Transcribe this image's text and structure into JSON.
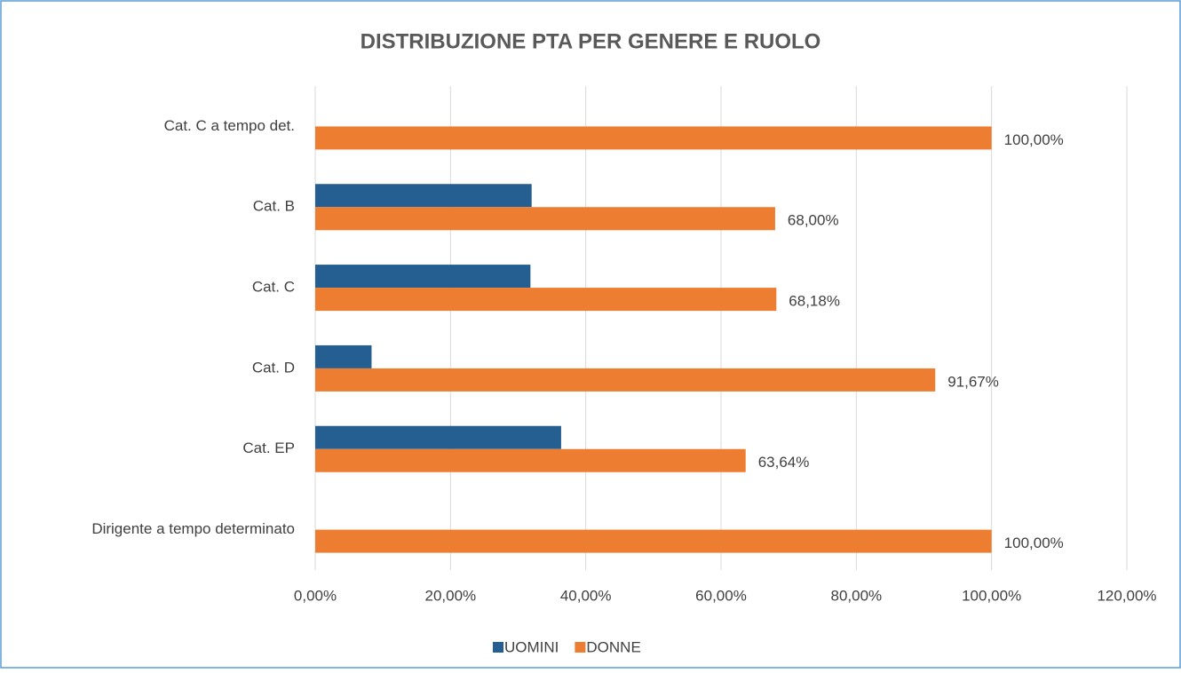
{
  "chart_data": {
    "type": "hbar",
    "title": "DISTRIBUZIONE PTA PER GENERE E RUOLO",
    "categories": [
      "Cat. C a tempo det.",
      "Cat. B",
      "Cat. C",
      "Cat. D",
      "Cat. EP",
      "Dirigente a tempo determinato"
    ],
    "series": [
      {
        "name": "UOMINI",
        "color": "#255e91",
        "values": [
          0,
          32,
          31.82,
          8.33,
          36.36,
          0
        ]
      },
      {
        "name": "DONNE",
        "color": "#ed7d31",
        "values": [
          100,
          68,
          68.18,
          91.67,
          63.64,
          100
        ],
        "value_labels": [
          "100,00%",
          "68,00%",
          "68,18%",
          "91,67%",
          "63,64%",
          "100,00%"
        ]
      }
    ],
    "xlim": [
      0,
      120
    ],
    "xticks": [
      {
        "value": 0,
        "label": "0,00%"
      },
      {
        "value": 20,
        "label": "20,00%"
      },
      {
        "value": 40,
        "label": "40,00%"
      },
      {
        "value": 60,
        "label": "60,00%"
      },
      {
        "value": 80,
        "label": "80,00%"
      },
      {
        "value": 100,
        "label": "100,00%"
      },
      {
        "value": 120,
        "label": "120,00%"
      }
    ],
    "grid": true,
    "legend": "bottom"
  }
}
